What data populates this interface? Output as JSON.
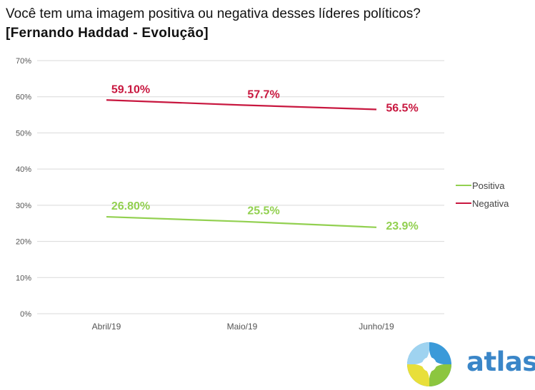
{
  "title": {
    "line1": "Você tem uma imagem positiva ou negativa desses líderes políticos?",
    "line2": "[Fernando Haddad - Evolução]"
  },
  "logo": {
    "text": "atlas",
    "colors": {
      "text": "#3a86c8",
      "yellow": "#e8df3a",
      "blue": "#3a9ad9",
      "green": "#8cc63f"
    }
  },
  "colors": {
    "positiva": "#92d050",
    "negativa": "#c8173f",
    "grid": "#d9d9d9"
  },
  "chart_data": {
    "type": "line",
    "title": "",
    "xlabel": "",
    "ylabel": "",
    "categories": [
      "Abril/19",
      "Maio/19",
      "Junho/19"
    ],
    "ylim": [
      0,
      70
    ],
    "yticks": [
      0,
      10,
      20,
      30,
      40,
      50,
      60,
      70
    ],
    "ytick_labels": [
      "0%",
      "10%",
      "20%",
      "30%",
      "40%",
      "50%",
      "60%",
      "70%"
    ],
    "grid": true,
    "legend_position": "right",
    "series": [
      {
        "name": "Positiva",
        "color": "#92d050",
        "values": [
          26.8,
          25.5,
          23.9
        ],
        "labels": [
          "26.80%",
          "25.5%",
          "23.9%"
        ]
      },
      {
        "name": "Negativa",
        "color": "#c8173f",
        "values": [
          59.1,
          57.7,
          56.5
        ],
        "labels": [
          "59.10%",
          "57.7%",
          "56.5%"
        ]
      }
    ]
  }
}
